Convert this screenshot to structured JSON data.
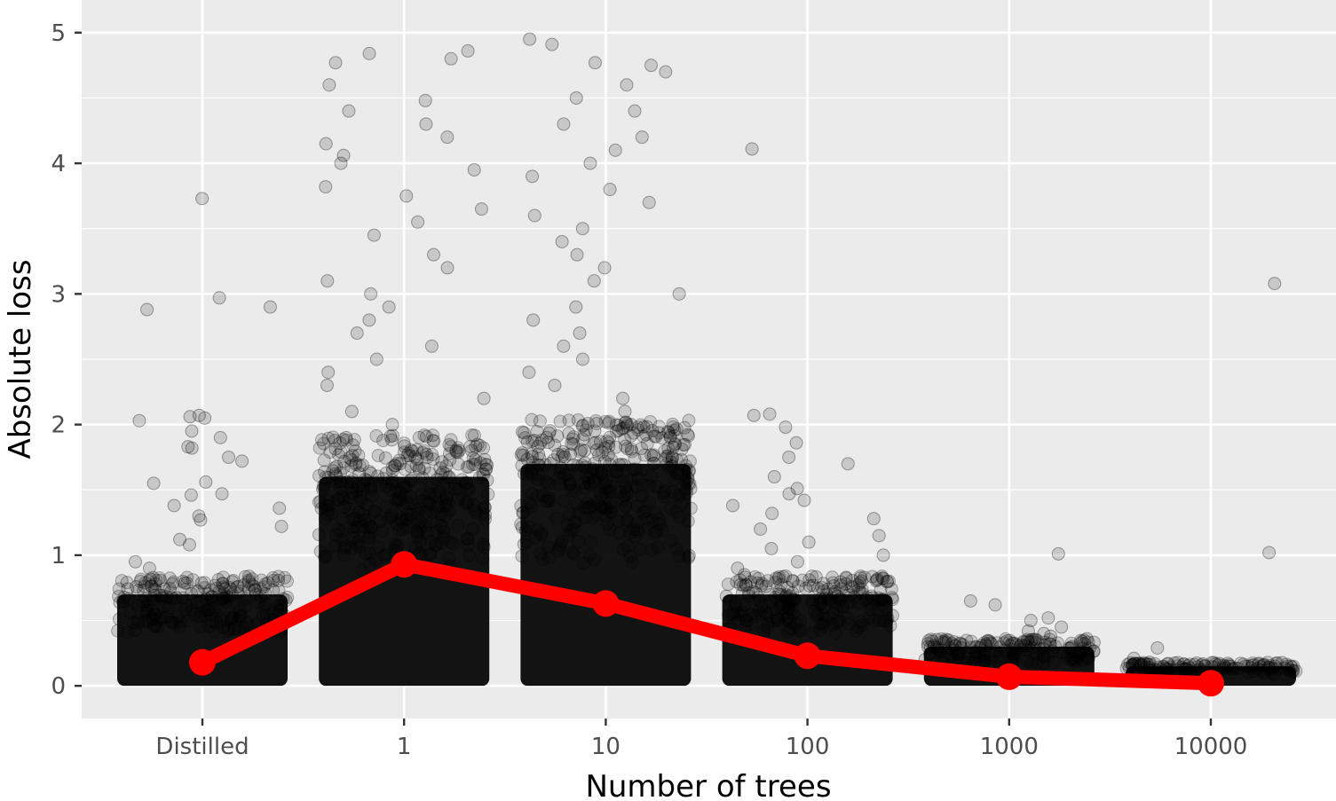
{
  "chart_data": {
    "type": "scatter",
    "xlabel": "Number of trees",
    "ylabel": "Absolute loss",
    "categories": [
      "Distilled",
      "1",
      "10",
      "100",
      "1000",
      "10000"
    ],
    "ylim": [
      -0.25,
      5.25
    ],
    "yticks": [
      0,
      1,
      2,
      3,
      4,
      5
    ],
    "grid": true,
    "legend": "none",
    "colors": {
      "panel_background": "#ebebeb",
      "gridline": "#ffffff",
      "points": "#000000",
      "mean_line": "#ff0000"
    },
    "series": [
      {
        "kind": "jittered points",
        "dense_band_max": [
          0.7,
          1.6,
          1.7,
          0.7,
          0.3,
          0.15
        ],
        "outliers": [
          [
            3.73,
            2.97,
            2.88,
            2.9,
            2.07,
            2.06,
            2.03,
            2.05,
            1.95,
            1.9,
            1.83,
            1.82,
            1.75,
            1.72,
            1.56,
            1.55,
            1.47,
            1.46,
            1.38,
            1.36,
            1.3,
            1.27,
            1.22,
            1.12,
            1.08,
            0.95,
            0.9
          ],
          [
            4.86,
            4.84,
            4.8,
            4.77,
            4.6,
            4.48,
            4.4,
            4.3,
            4.2,
            4.15,
            4.06,
            4.0,
            3.95,
            3.82,
            3.75,
            3.65,
            3.55,
            3.45,
            3.3,
            3.2,
            3.1,
            3.0,
            2.9,
            2.8,
            2.7,
            2.6,
            2.5,
            2.4,
            2.3,
            2.2,
            2.1,
            2.0,
            1.9,
            1.8
          ],
          [
            4.95,
            4.91,
            4.77,
            4.75,
            4.7,
            4.6,
            4.5,
            4.4,
            4.3,
            4.2,
            4.1,
            4.0,
            3.9,
            3.8,
            3.7,
            3.6,
            3.5,
            3.4,
            3.3,
            3.2,
            3.1,
            3.0,
            2.9,
            2.8,
            2.7,
            2.6,
            2.5,
            2.4,
            2.3,
            2.2,
            2.1,
            2.0,
            1.9,
            1.8
          ],
          [
            4.11,
            2.07,
            2.08,
            1.98,
            1.86,
            1.75,
            1.7,
            1.6,
            1.51,
            1.47,
            1.42,
            1.38,
            1.32,
            1.28,
            1.2,
            1.15,
            1.1,
            1.05,
            1.0,
            0.95,
            0.9,
            0.85,
            0.8,
            0.75
          ],
          [
            1.01,
            0.65,
            0.62,
            0.52,
            0.5,
            0.45,
            0.42,
            0.4,
            0.38,
            0.36,
            0.35,
            0.33
          ],
          [
            3.08,
            1.02,
            0.29,
            0.21,
            0.18,
            0.17,
            0.16,
            0.15
          ]
        ]
      },
      {
        "kind": "mean line",
        "values": [
          0.18,
          0.93,
          0.63,
          0.23,
          0.07,
          0.02
        ]
      }
    ]
  }
}
